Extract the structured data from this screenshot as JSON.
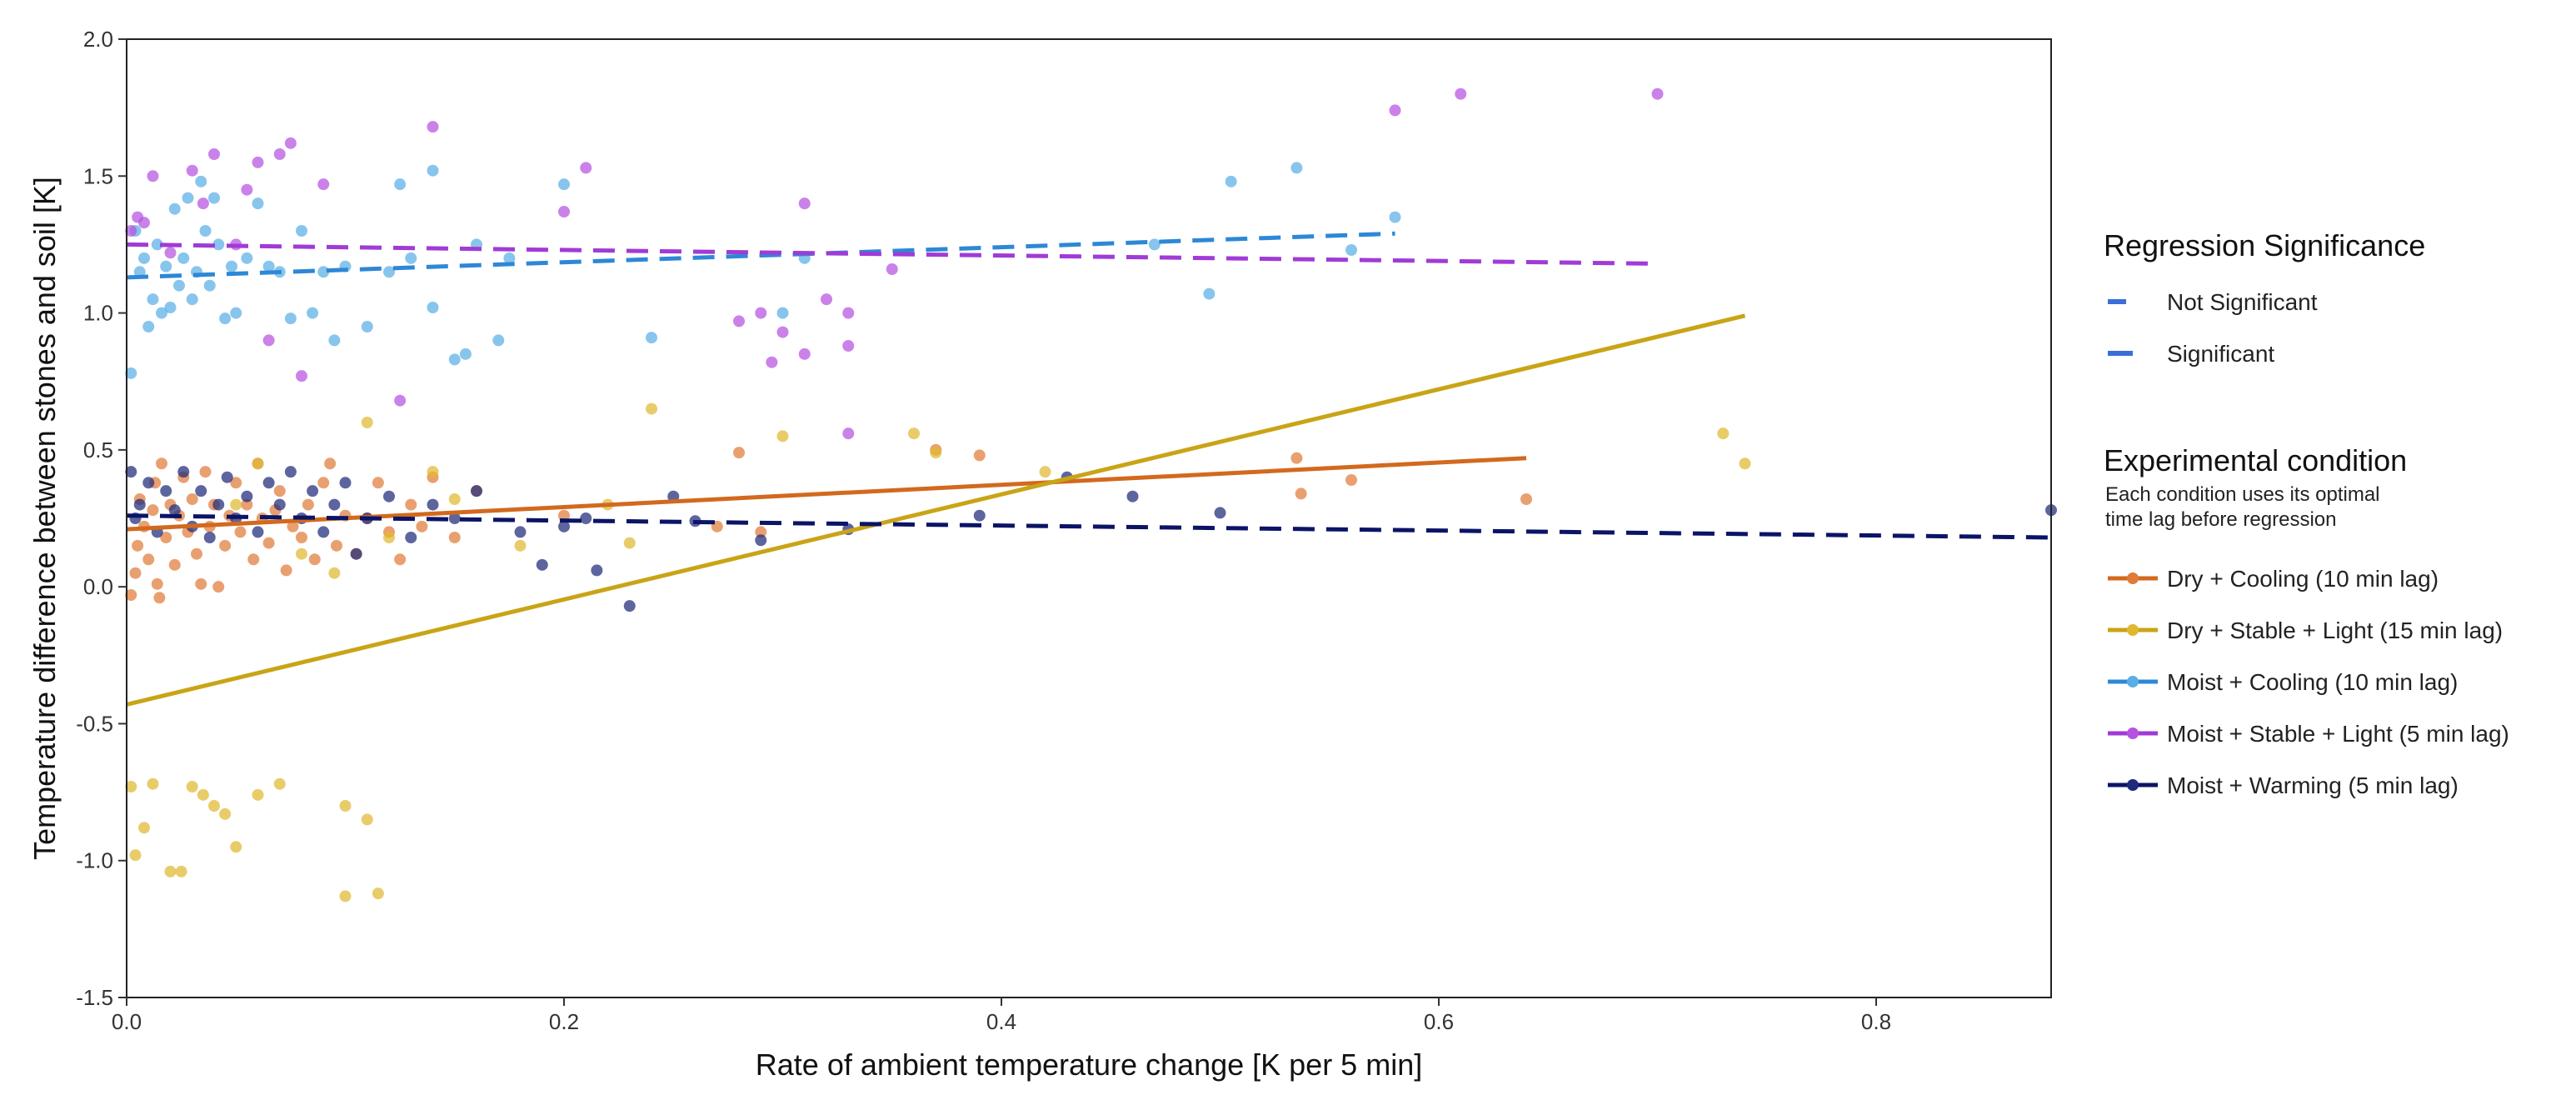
{
  "chart_data": {
    "type": "scatter",
    "xlabel": "Rate of ambient temperature change [K per 5 min]",
    "ylabel": "Temperature difference between stones and soil [K]",
    "xlim": [
      0,
      0.88
    ],
    "ylim": [
      -1.5,
      2.0
    ],
    "x_ticks": [
      {
        "value": 0.0,
        "label": "0.0"
      },
      {
        "value": 0.2,
        "label": "0.2"
      },
      {
        "value": 0.4,
        "label": "0.4"
      },
      {
        "value": 0.6,
        "label": "0.6"
      },
      {
        "value": 0.8,
        "label": "0.8"
      }
    ],
    "y_ticks": [
      {
        "value": 2.0,
        "label": "2.0"
      },
      {
        "value": 1.5,
        "label": "1.5"
      },
      {
        "value": 1.0,
        "label": "1.0"
      },
      {
        "value": 0.5,
        "label": "0.5"
      },
      {
        "value": 0.0,
        "label": "0.0"
      },
      {
        "value": -0.5,
        "label": "-0.5"
      },
      {
        "value": -1.0,
        "label": "-1.0"
      },
      {
        "value": -1.5,
        "label": "-1.5"
      }
    ],
    "grid": false,
    "legend_position": "right",
    "legend": {
      "significance_title": "Regression Significance",
      "significance_items": [
        {
          "label": "Not Significant",
          "dashed": true
        },
        {
          "label": "Significant",
          "dashed": false
        }
      ],
      "condition_title": "Experimental condition",
      "condition_subtitle_lines": [
        "Each condition uses its optimal",
        "time lag before regression"
      ]
    },
    "series": [
      {
        "name": "Dry + Cooling (10 min lag)",
        "color": "#E07B39",
        "line_color": "#D2691E",
        "significant": true,
        "regression": {
          "x": [
            0.0,
            0.64
          ],
          "y": [
            0.21,
            0.47
          ]
        },
        "points": [
          [
            0.002,
            -0.03
          ],
          [
            0.004,
            0.05
          ],
          [
            0.005,
            0.15
          ],
          [
            0.006,
            0.32
          ],
          [
            0.008,
            0.22
          ],
          [
            0.01,
            0.1
          ],
          [
            0.012,
            0.28
          ],
          [
            0.013,
            0.38
          ],
          [
            0.014,
            0.01
          ],
          [
            0.015,
            -0.04
          ],
          [
            0.016,
            0.45
          ],
          [
            0.018,
            0.18
          ],
          [
            0.02,
            0.3
          ],
          [
            0.022,
            0.08
          ],
          [
            0.024,
            0.26
          ],
          [
            0.026,
            0.4
          ],
          [
            0.028,
            0.2
          ],
          [
            0.03,
            0.32
          ],
          [
            0.032,
            0.12
          ],
          [
            0.034,
            0.01
          ],
          [
            0.036,
            0.42
          ],
          [
            0.038,
            0.22
          ],
          [
            0.04,
            0.3
          ],
          [
            0.042,
            0.0
          ],
          [
            0.045,
            0.15
          ],
          [
            0.047,
            0.26
          ],
          [
            0.05,
            0.38
          ],
          [
            0.052,
            0.2
          ],
          [
            0.055,
            0.3
          ],
          [
            0.058,
            0.1
          ],
          [
            0.06,
            0.45
          ],
          [
            0.062,
            0.25
          ],
          [
            0.065,
            0.16
          ],
          [
            0.068,
            0.28
          ],
          [
            0.07,
            0.35
          ],
          [
            0.073,
            0.06
          ],
          [
            0.076,
            0.22
          ],
          [
            0.08,
            0.18
          ],
          [
            0.083,
            0.3
          ],
          [
            0.086,
            0.1
          ],
          [
            0.09,
            0.38
          ],
          [
            0.093,
            0.45
          ],
          [
            0.096,
            0.15
          ],
          [
            0.1,
            0.26
          ],
          [
            0.105,
            0.12
          ],
          [
            0.11,
            0.25
          ],
          [
            0.115,
            0.38
          ],
          [
            0.12,
            0.2
          ],
          [
            0.125,
            0.1
          ],
          [
            0.13,
            0.3
          ],
          [
            0.135,
            0.22
          ],
          [
            0.14,
            0.4
          ],
          [
            0.15,
            0.18
          ],
          [
            0.16,
            0.35
          ],
          [
            0.2,
            0.26
          ],
          [
            0.27,
            0.22
          ],
          [
            0.28,
            0.49
          ],
          [
            0.29,
            0.2
          ],
          [
            0.37,
            0.5
          ],
          [
            0.39,
            0.48
          ],
          [
            0.535,
            0.47
          ],
          [
            0.537,
            0.34
          ],
          [
            0.56,
            0.39
          ],
          [
            0.64,
            0.32
          ]
        ]
      },
      {
        "name": "Dry + Stable + Light (15 min lag)",
        "color": "#E0B830",
        "line_color": "#C9A416",
        "significant": true,
        "regression": {
          "x": [
            0.0,
            0.74
          ],
          "y": [
            -0.43,
            0.99
          ]
        },
        "points": [
          [
            0.002,
            -0.73
          ],
          [
            0.004,
            -0.98
          ],
          [
            0.008,
            -0.88
          ],
          [
            0.012,
            -0.72
          ],
          [
            0.02,
            -1.04
          ],
          [
            0.025,
            -1.04
          ],
          [
            0.03,
            -0.73
          ],
          [
            0.035,
            -0.76
          ],
          [
            0.04,
            -0.8
          ],
          [
            0.045,
            -0.83
          ],
          [
            0.05,
            -0.95
          ],
          [
            0.06,
            -0.76
          ],
          [
            0.07,
            -0.72
          ],
          [
            0.1,
            -1.13
          ],
          [
            0.1,
            -0.8
          ],
          [
            0.11,
            -0.85
          ],
          [
            0.115,
            -1.12
          ],
          [
            0.05,
            0.3
          ],
          [
            0.06,
            0.45
          ],
          [
            0.08,
            0.12
          ],
          [
            0.095,
            0.05
          ],
          [
            0.11,
            0.6
          ],
          [
            0.12,
            0.18
          ],
          [
            0.14,
            0.42
          ],
          [
            0.15,
            0.32
          ],
          [
            0.18,
            0.15
          ],
          [
            0.22,
            0.3
          ],
          [
            0.23,
            0.16
          ],
          [
            0.24,
            0.65
          ],
          [
            0.3,
            0.55
          ],
          [
            0.36,
            0.56
          ],
          [
            0.37,
            0.49
          ],
          [
            0.42,
            0.42
          ],
          [
            0.73,
            0.56
          ],
          [
            0.74,
            0.45
          ]
        ]
      },
      {
        "name": "Moist + Cooling (10 min lag)",
        "color": "#5AAEE6",
        "line_color": "#2D88D6",
        "significant": false,
        "regression": {
          "x": [
            0.0,
            0.58
          ],
          "y": [
            1.13,
            1.29
          ]
        },
        "points": [
          [
            0.002,
            0.78
          ],
          [
            0.004,
            1.3
          ],
          [
            0.006,
            1.15
          ],
          [
            0.008,
            1.2
          ],
          [
            0.01,
            0.95
          ],
          [
            0.012,
            1.05
          ],
          [
            0.014,
            1.25
          ],
          [
            0.016,
            1.0
          ],
          [
            0.018,
            1.17
          ],
          [
            0.02,
            1.02
          ],
          [
            0.022,
            1.38
          ],
          [
            0.024,
            1.1
          ],
          [
            0.026,
            1.2
          ],
          [
            0.028,
            1.42
          ],
          [
            0.03,
            1.05
          ],
          [
            0.032,
            1.15
          ],
          [
            0.034,
            1.48
          ],
          [
            0.036,
            1.3
          ],
          [
            0.038,
            1.1
          ],
          [
            0.04,
            1.42
          ],
          [
            0.042,
            1.25
          ],
          [
            0.045,
            0.98
          ],
          [
            0.048,
            1.17
          ],
          [
            0.05,
            1.0
          ],
          [
            0.055,
            1.2
          ],
          [
            0.06,
            1.4
          ],
          [
            0.065,
            1.17
          ],
          [
            0.07,
            1.15
          ],
          [
            0.075,
            0.98
          ],
          [
            0.08,
            1.3
          ],
          [
            0.085,
            1.0
          ],
          [
            0.09,
            1.15
          ],
          [
            0.095,
            0.9
          ],
          [
            0.1,
            1.17
          ],
          [
            0.11,
            0.95
          ],
          [
            0.12,
            1.15
          ],
          [
            0.125,
            1.47
          ],
          [
            0.13,
            1.2
          ],
          [
            0.14,
            1.02
          ],
          [
            0.14,
            1.52
          ],
          [
            0.15,
            0.83
          ],
          [
            0.155,
            0.85
          ],
          [
            0.16,
            1.25
          ],
          [
            0.17,
            0.9
          ],
          [
            0.175,
            1.2
          ],
          [
            0.2,
            1.47
          ],
          [
            0.24,
            0.91
          ],
          [
            0.3,
            1.0
          ],
          [
            0.31,
            1.2
          ],
          [
            0.47,
            1.25
          ],
          [
            0.495,
            1.07
          ],
          [
            0.505,
            1.48
          ],
          [
            0.535,
            1.53
          ],
          [
            0.56,
            1.23
          ],
          [
            0.58,
            1.35
          ]
        ]
      },
      {
        "name": "Moist + Stable + Light (5 min lag)",
        "color": "#B552E0",
        "line_color": "#A03BD6",
        "significant": false,
        "regression": {
          "x": [
            0.0,
            0.7
          ],
          "y": [
            1.25,
            1.18
          ]
        },
        "points": [
          [
            0.002,
            1.3
          ],
          [
            0.005,
            1.35
          ],
          [
            0.008,
            1.33
          ],
          [
            0.012,
            1.5
          ],
          [
            0.02,
            1.22
          ],
          [
            0.03,
            1.52
          ],
          [
            0.035,
            1.4
          ],
          [
            0.04,
            1.58
          ],
          [
            0.05,
            1.25
          ],
          [
            0.055,
            1.45
          ],
          [
            0.06,
            1.55
          ],
          [
            0.065,
            0.9
          ],
          [
            0.07,
            1.58
          ],
          [
            0.075,
            1.62
          ],
          [
            0.08,
            0.77
          ],
          [
            0.09,
            1.47
          ],
          [
            0.125,
            0.68
          ],
          [
            0.14,
            1.68
          ],
          [
            0.2,
            1.37
          ],
          [
            0.21,
            1.53
          ],
          [
            0.28,
            0.97
          ],
          [
            0.29,
            1.0
          ],
          [
            0.295,
            0.82
          ],
          [
            0.3,
            0.93
          ],
          [
            0.31,
            0.85
          ],
          [
            0.31,
            1.4
          ],
          [
            0.32,
            1.05
          ],
          [
            0.33,
            1.0
          ],
          [
            0.33,
            0.88
          ],
          [
            0.35,
            1.16
          ],
          [
            0.33,
            0.56
          ],
          [
            0.58,
            1.74
          ],
          [
            0.61,
            1.8
          ],
          [
            0.7,
            1.8
          ]
        ]
      },
      {
        "name": "Moist + Warming (5 min lag)",
        "color": "#1F2A7A",
        "line_color": "#0B1466",
        "significant": false,
        "regression": {
          "x": [
            0.0,
            0.88
          ],
          "y": [
            0.26,
            0.18
          ]
        },
        "points": [
          [
            0.002,
            0.42
          ],
          [
            0.004,
            0.25
          ],
          [
            0.006,
            0.3
          ],
          [
            0.01,
            0.38
          ],
          [
            0.014,
            0.2
          ],
          [
            0.018,
            0.35
          ],
          [
            0.022,
            0.28
          ],
          [
            0.026,
            0.42
          ],
          [
            0.03,
            0.22
          ],
          [
            0.034,
            0.35
          ],
          [
            0.038,
            0.18
          ],
          [
            0.042,
            0.3
          ],
          [
            0.046,
            0.4
          ],
          [
            0.05,
            0.25
          ],
          [
            0.055,
            0.33
          ],
          [
            0.06,
            0.2
          ],
          [
            0.065,
            0.38
          ],
          [
            0.07,
            0.3
          ],
          [
            0.075,
            0.42
          ],
          [
            0.08,
            0.25
          ],
          [
            0.085,
            0.35
          ],
          [
            0.09,
            0.2
          ],
          [
            0.095,
            0.3
          ],
          [
            0.1,
            0.38
          ],
          [
            0.105,
            0.12
          ],
          [
            0.11,
            0.25
          ],
          [
            0.12,
            0.33
          ],
          [
            0.13,
            0.18
          ],
          [
            0.14,
            0.3
          ],
          [
            0.15,
            0.25
          ],
          [
            0.16,
            0.35
          ],
          [
            0.18,
            0.2
          ],
          [
            0.19,
            0.08
          ],
          [
            0.2,
            0.22
          ],
          [
            0.21,
            0.25
          ],
          [
            0.215,
            0.06
          ],
          [
            0.23,
            -0.07
          ],
          [
            0.25,
            0.33
          ],
          [
            0.26,
            0.24
          ],
          [
            0.29,
            0.17
          ],
          [
            0.33,
            0.21
          ],
          [
            0.39,
            0.26
          ],
          [
            0.43,
            0.4
          ],
          [
            0.46,
            0.33
          ],
          [
            0.5,
            0.27
          ],
          [
            0.88,
            0.28
          ]
        ]
      }
    ]
  }
}
